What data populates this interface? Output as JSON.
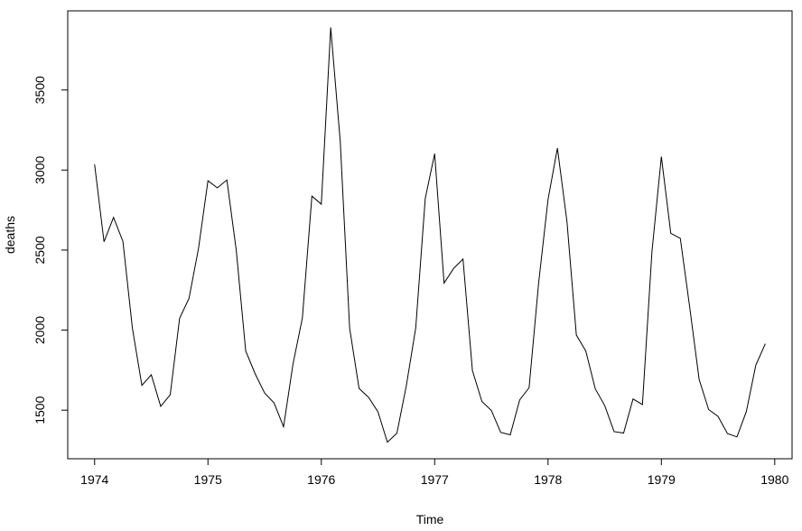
{
  "chart_data": {
    "type": "line",
    "xlabel": "Time",
    "ylabel": "deaths",
    "x": [
      1974,
      1974.083,
      1974.167,
      1974.25,
      1974.333,
      1974.417,
      1974.5,
      1974.583,
      1974.667,
      1974.75,
      1974.833,
      1974.917,
      1975,
      1975.083,
      1975.167,
      1975.25,
      1975.333,
      1975.417,
      1975.5,
      1975.583,
      1975.667,
      1975.75,
      1975.833,
      1975.917,
      1976,
      1976.083,
      1976.167,
      1976.25,
      1976.333,
      1976.417,
      1976.5,
      1976.583,
      1976.667,
      1976.75,
      1976.833,
      1976.917,
      1977,
      1977.083,
      1977.167,
      1977.25,
      1977.333,
      1977.417,
      1977.5,
      1977.583,
      1977.667,
      1977.75,
      1977.833,
      1977.917,
      1978,
      1978.083,
      1978.167,
      1978.25,
      1978.333,
      1978.417,
      1978.5,
      1978.583,
      1978.667,
      1978.75,
      1978.833,
      1978.917,
      1979,
      1979.083,
      1979.167,
      1979.25,
      1979.333,
      1979.417,
      1979.5,
      1979.583,
      1979.667,
      1979.75,
      1979.833,
      1979.917
    ],
    "values": [
      3035,
      2552,
      2704,
      2554,
      2014,
      1655,
      1721,
      1524,
      1596,
      2074,
      2199,
      2512,
      2933,
      2889,
      2938,
      2497,
      1870,
      1726,
      1607,
      1545,
      1396,
      1787,
      2076,
      2837,
      2787,
      3891,
      3179,
      2011,
      1636,
      1580,
      1489,
      1300,
      1356,
      1653,
      2013,
      2823,
      3102,
      2294,
      2385,
      2444,
      1748,
      1554,
      1498,
      1361,
      1346,
      1564,
      1640,
      2293,
      2815,
      3137,
      2679,
      1969,
      1870,
      1633,
      1529,
      1366,
      1357,
      1570,
      1535,
      2491,
      3084,
      2605,
      2573,
      2143,
      1693,
      1504,
      1461,
      1354,
      1333,
      1492,
      1781,
      1915
    ],
    "color": "#000000",
    "xlim": [
      1973.763,
      1980.153
    ],
    "xticks": [
      1974,
      1975,
      1976,
      1977,
      1978,
      1979,
      1980
    ],
    "ylim": [
      1196.4,
      3994.6
    ],
    "yticks": [
      1500,
      2000,
      2500,
      3000,
      3500
    ]
  }
}
